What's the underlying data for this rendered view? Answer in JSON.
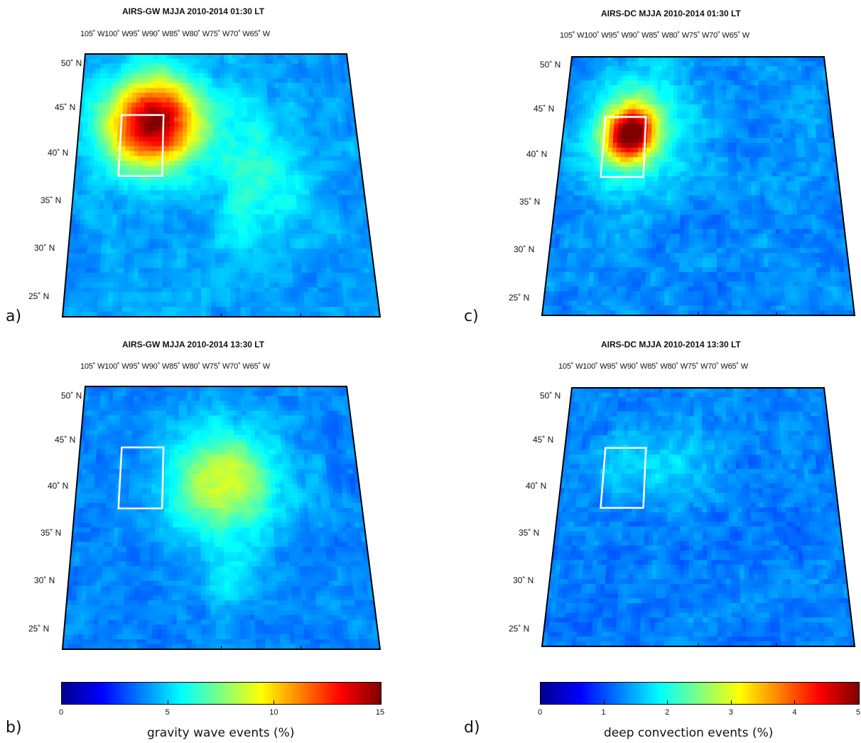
{
  "panels": [
    {
      "id": "a",
      "label": "a)",
      "title": "AIRS-GW MJJA 2010-2014 01:30 LT",
      "variable": "gw",
      "time": "0130"
    },
    {
      "id": "c",
      "label": "c)",
      "title": "AIRS-DC MJJA 2010-2014 01:30 LT",
      "variable": "dc",
      "time": "0130"
    },
    {
      "id": "b",
      "label": "b)",
      "title": "AIRS-GW MJJA 2010-2014 13:30 LT",
      "variable": "gw",
      "time": "1330"
    },
    {
      "id": "d",
      "label": "d)",
      "title": "AIRS-DC MJJA 2010-2014 13:30 LT",
      "variable": "dc",
      "time": "1330"
    }
  ],
  "lon_labels": [
    "105˚ W",
    "100˚ W",
    "95˚ W",
    "90˚ W",
    "85˚ W",
    "80˚ W",
    "75˚ W",
    "70˚ W",
    "65˚ W"
  ],
  "lat_labels": [
    "50˚ N",
    "45˚ N",
    "40˚ N",
    "35˚ N",
    "30˚ N",
    "25˚ N"
  ],
  "highlight_box": {
    "lon_range": [
      -101,
      -94
    ],
    "lat_range": [
      38.5,
      45
    ],
    "color": "#ffffff"
  },
  "colorbars": [
    {
      "label": "gravity wave events (%)",
      "ticks": [
        "0",
        "5",
        "10",
        "15"
      ],
      "range": [
        0,
        15
      ]
    },
    {
      "label": "deep convection events (%)",
      "ticks": [
        "0",
        "1",
        "2",
        "3",
        "4",
        "5"
      ],
      "range": [
        0,
        5
      ]
    }
  ],
  "colormap": "jet",
  "colormap_stops": [
    "#00008f",
    "#0000ff",
    "#0080ff",
    "#00ffff",
    "#80ff80",
    "#ffff00",
    "#ff8000",
    "#ff0000",
    "#800000"
  ]
}
